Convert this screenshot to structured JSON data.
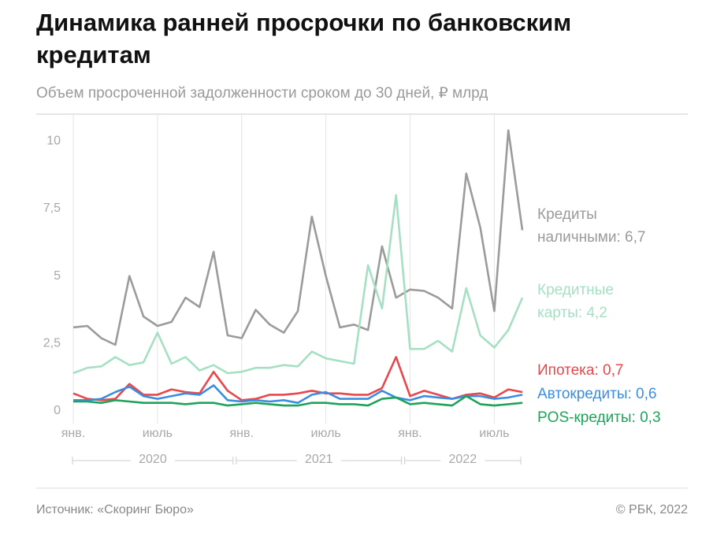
{
  "chart_data": {
    "type": "line",
    "title_lines": [
      "Динамика ранней просрочки по банковским",
      "кредитам"
    ],
    "subtitle": "Объем просроченной задолженности сроком до 30 дней, ₽ млрд",
    "categories": [
      "янв.",
      null,
      null,
      null,
      null,
      null,
      "июль",
      null,
      null,
      null,
      null,
      null,
      "янв.",
      null,
      null,
      null,
      null,
      null,
      "июль",
      null,
      null,
      null,
      null,
      null,
      "янв.",
      null,
      null,
      null,
      null,
      null,
      "июль",
      null,
      null
    ],
    "years": [
      "2020",
      "2021",
      "2022"
    ],
    "ylim": [
      0,
      11
    ],
    "yticks": [
      0,
      {
        "value": 2.5,
        "label": "2,5"
      },
      5,
      {
        "value": 7.5,
        "label": "7,5"
      },
      10
    ],
    "grid": "x",
    "series": [
      {
        "name": "Кредиты наличными",
        "label_lines": [
          "Кредиты",
          "наличными: 6,7"
        ],
        "color": "#9b9b9b",
        "values": [
          3.1,
          3.15,
          2.7,
          2.45,
          5.0,
          3.5,
          3.15,
          3.3,
          4.2,
          3.85,
          5.9,
          2.8,
          2.7,
          3.75,
          3.2,
          2.9,
          3.7,
          7.2,
          5.0,
          3.1,
          3.2,
          3.0,
          6.1,
          4.2,
          4.5,
          4.45,
          4.2,
          3.8,
          8.8,
          6.8,
          3.7,
          10.4,
          6.7
        ]
      },
      {
        "name": "Кредитные карты",
        "label_lines": [
          "Кредитные",
          "карты: 4,2"
        ],
        "color": "#a6e0c4",
        "values": [
          1.4,
          1.6,
          1.65,
          2.0,
          1.7,
          1.8,
          2.9,
          1.75,
          2.0,
          1.5,
          1.7,
          1.4,
          1.45,
          1.6,
          1.6,
          1.7,
          1.65,
          2.2,
          1.95,
          1.85,
          1.75,
          5.4,
          3.8,
          8.0,
          2.3,
          2.3,
          2.6,
          2.2,
          4.55,
          2.8,
          2.35,
          3.0,
          4.2
        ]
      },
      {
        "name": "Ипотека",
        "label_lines": [
          "Ипотека: 0,7"
        ],
        "color": "#e8474c",
        "values": [
          0.65,
          0.45,
          0.4,
          0.45,
          1.0,
          0.6,
          0.6,
          0.8,
          0.7,
          0.65,
          1.45,
          0.75,
          0.4,
          0.45,
          0.6,
          0.6,
          0.65,
          0.75,
          0.65,
          0.65,
          0.6,
          0.6,
          0.85,
          2.0,
          0.55,
          0.75,
          0.6,
          0.45,
          0.6,
          0.65,
          0.5,
          0.8,
          0.7
        ]
      },
      {
        "name": "Автокредиты",
        "label_lines": [
          "Автокредиты: 0,6"
        ],
        "color": "#3b8de0",
        "values": [
          0.4,
          0.4,
          0.45,
          0.7,
          0.9,
          0.55,
          0.45,
          0.55,
          0.65,
          0.6,
          0.95,
          0.4,
          0.35,
          0.4,
          0.35,
          0.4,
          0.3,
          0.6,
          0.7,
          0.45,
          0.45,
          0.45,
          0.75,
          0.5,
          0.4,
          0.55,
          0.5,
          0.45,
          0.55,
          0.55,
          0.45,
          0.5,
          0.6
        ]
      },
      {
        "name": "POS-кредиты",
        "label_lines": [
          "POS-кредиты: 0,3"
        ],
        "color": "#1fa35a",
        "values": [
          0.35,
          0.35,
          0.3,
          0.4,
          0.35,
          0.3,
          0.3,
          0.3,
          0.25,
          0.3,
          0.3,
          0.2,
          0.25,
          0.3,
          0.25,
          0.2,
          0.2,
          0.3,
          0.3,
          0.25,
          0.25,
          0.2,
          0.45,
          0.5,
          0.25,
          0.3,
          0.25,
          0.2,
          0.55,
          0.25,
          0.2,
          0.25,
          0.3
        ]
      }
    ],
    "source": "Источник: «Скоринг Бюро»",
    "copyright": "© РБК, 2022"
  }
}
